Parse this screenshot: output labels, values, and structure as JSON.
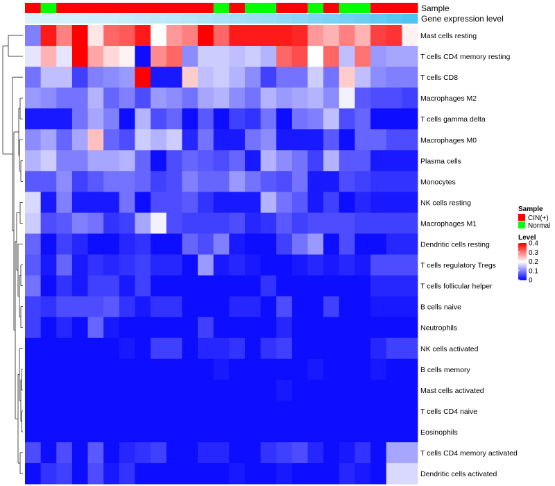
{
  "chart_data": {
    "type": "heatmap",
    "title": "",
    "annotation_labels": {
      "sample": "Sample",
      "expression": "Gene expression level"
    },
    "sample_groups": [
      "CIN(+)",
      "Normal",
      "CIN(+)",
      "CIN(+)",
      "CIN(+)",
      "CIN(+)",
      "CIN(+)",
      "CIN(+)",
      "CIN(+)",
      "CIN(+)",
      "CIN(+)",
      "CIN(+)",
      "Normal",
      "CIN(+)",
      "Normal",
      "Normal",
      "CIN(+)",
      "CIN(+)",
      "Normal",
      "CIN(+)",
      "Normal",
      "Normal",
      "CIN(+)",
      "CIN(+)",
      "CIN(+)"
    ],
    "gene_expression_level": [
      0.05,
      0.06,
      0.08,
      0.1,
      0.12,
      0.14,
      0.17,
      0.2,
      0.23,
      0.26,
      0.3,
      0.34,
      0.38,
      0.42,
      0.46,
      0.5,
      0.55,
      0.6,
      0.65,
      0.7,
      0.75,
      0.8,
      0.87,
      0.94,
      1.0
    ],
    "rows": [
      "Mast cells resting",
      "T cells CD4 memory resting",
      "T cells CD8",
      "Macrophages M2",
      "T cells gamma delta",
      "Macrophages M0",
      "Plasma cells",
      "Monocytes",
      "NK cells resting",
      "Macrophages M1",
      "Dendritic cells resting",
      "T cells regulatory  Tregs",
      "T cells follicular helper",
      "B cells naive",
      "Neutrophils",
      "NK cells activated",
      "B cells memory",
      "Mast cells activated",
      "T cells CD4 naive",
      "Eosinophils",
      "T cells CD4 memory activated",
      "Dendritic cells activated"
    ],
    "values": [
      [
        0.1,
        0.38,
        0.3,
        0.4,
        0.22,
        0.32,
        0.33,
        0.38,
        0.2,
        0.28,
        0.3,
        0.4,
        0.32,
        0.38,
        0.38,
        0.38,
        0.38,
        0.37,
        0.28,
        0.26,
        0.3,
        0.26,
        0.35,
        0.36,
        0.21
      ],
      [
        0.18,
        0.26,
        0.18,
        0.4,
        0.27,
        0.23,
        0.21,
        0.01,
        0.29,
        0.32,
        0.11,
        0.16,
        0.16,
        0.15,
        0.16,
        0.14,
        0.32,
        0.34,
        0.2,
        0.32,
        0.15,
        0.31,
        0.12,
        0.13,
        0.13
      ],
      [
        0.09,
        0.15,
        0.15,
        0.05,
        0.1,
        0.11,
        0.12,
        0.4,
        0.02,
        0.02,
        0.24,
        0.15,
        0.16,
        0.14,
        0.11,
        0.05,
        0.09,
        0.09,
        0.16,
        0.09,
        0.24,
        0.15,
        0.11,
        0.1,
        0.1
      ],
      [
        0.12,
        0.11,
        0.09,
        0.09,
        0.14,
        0.08,
        0.1,
        0.06,
        0.12,
        0.11,
        0.09,
        0.13,
        0.14,
        0.11,
        0.09,
        0.14,
        0.12,
        0.13,
        0.14,
        0.11,
        0.19,
        0.07,
        0.06,
        0.06,
        0.05
      ],
      [
        0.02,
        0.02,
        0.02,
        0.09,
        0.13,
        0.1,
        0.01,
        0.14,
        0.06,
        0.08,
        0.01,
        0.07,
        0.01,
        0.05,
        0.04,
        0.09,
        0.01,
        0.09,
        0.1,
        0.15,
        0.06,
        0.08,
        0.01,
        0.01,
        0.01
      ],
      [
        0.11,
        0.13,
        0.08,
        0.13,
        0.25,
        0.08,
        0.06,
        0.16,
        0.14,
        0.16,
        0.03,
        0.09,
        0.02,
        0.02,
        0.09,
        0.11,
        0.02,
        0.02,
        0.02,
        0.07,
        0.01,
        0.08,
        0.08,
        0.06,
        0.06
      ],
      [
        0.14,
        0.16,
        0.1,
        0.1,
        0.13,
        0.13,
        0.14,
        0.08,
        0.01,
        0.06,
        0.08,
        0.07,
        0.06,
        0.08,
        0.02,
        0.14,
        0.11,
        0.09,
        0.05,
        0.14,
        0.07,
        0.07,
        0.02,
        0.02,
        0.02
      ],
      [
        0.07,
        0.07,
        0.11,
        0.05,
        0.07,
        0.09,
        0.09,
        0.08,
        0.05,
        0.06,
        0.1,
        0.08,
        0.08,
        0.12,
        0.09,
        0.07,
        0.06,
        0.09,
        0.02,
        0.02,
        0.06,
        0.05,
        0.04,
        0.04,
        0.04
      ],
      [
        0.17,
        0.02,
        0.1,
        0.02,
        0.02,
        0.02,
        0.09,
        0.01,
        0.06,
        0.06,
        0.07,
        0.04,
        0.02,
        0.02,
        0.02,
        0.14,
        0.09,
        0.07,
        0.02,
        0.05,
        0.01,
        0.03,
        0.02,
        0.02,
        0.02
      ],
      [
        0.16,
        0.06,
        0.07,
        0.1,
        0.09,
        0.04,
        0.05,
        0.13,
        0.19,
        0.06,
        0.05,
        0.05,
        0.05,
        0.06,
        0.03,
        0.04,
        0.07,
        0.05,
        0.06,
        0.06,
        0.06,
        0.05,
        0.05,
        0.05,
        0.05
      ],
      [
        0.08,
        0.01,
        0.05,
        0.03,
        0.01,
        0.01,
        0.03,
        0.04,
        0.01,
        0.01,
        0.08,
        0.06,
        0.1,
        0.02,
        0.01,
        0.01,
        0.05,
        0.09,
        0.12,
        0.01,
        0.06,
        0.01,
        0.01,
        0.03,
        0.03
      ],
      [
        0.07,
        0.02,
        0.08,
        0.02,
        0.04,
        0.03,
        0.04,
        0.05,
        0.03,
        0.03,
        0.01,
        0.12,
        0.02,
        0.03,
        0.02,
        0.01,
        0.01,
        0.02,
        0.03,
        0.02,
        0.03,
        0.02,
        0.06,
        0.06,
        0.06
      ],
      [
        0.09,
        0.01,
        0.04,
        0.02,
        0.05,
        0.05,
        0.02,
        0.05,
        0.01,
        0.01,
        0.01,
        0.01,
        0.01,
        0.01,
        0.01,
        0.04,
        0.01,
        0.01,
        0.01,
        0.01,
        0.01,
        0.01,
        0.03,
        0.03,
        0.03
      ],
      [
        0.05,
        0.04,
        0.06,
        0.06,
        0.06,
        0.07,
        0.04,
        0.02,
        0.04,
        0.04,
        0.01,
        0.01,
        0.01,
        0.03,
        0.03,
        0.01,
        0.06,
        0.01,
        0.01,
        0.05,
        0.01,
        0.01,
        0.02,
        0.02,
        0.02
      ],
      [
        0.05,
        0.01,
        0.03,
        0.01,
        0.08,
        0.02,
        0.01,
        0.01,
        0.01,
        0.01,
        0.01,
        0.05,
        0.01,
        0.01,
        0.01,
        0.01,
        0.03,
        0.01,
        0.01,
        0.01,
        0.01,
        0.01,
        0.01,
        0.01,
        0.01
      ],
      [
        0.01,
        0.01,
        0.01,
        0.01,
        0.01,
        0.01,
        0.02,
        0.01,
        0.05,
        0.05,
        0.01,
        0.03,
        0.03,
        0.04,
        0.01,
        0.04,
        0.05,
        0.01,
        0.01,
        0.01,
        0.01,
        0.01,
        0.03,
        0.05,
        0.05
      ],
      [
        0.01,
        0.01,
        0.01,
        0.01,
        0.01,
        0.01,
        0.01,
        0.01,
        0.01,
        0.01,
        0.01,
        0.01,
        0.02,
        0.01,
        0.01,
        0.01,
        0.01,
        0.01,
        0.02,
        0.01,
        0.01,
        0.01,
        0.02,
        0.01,
        0.01
      ],
      [
        0.01,
        0.01,
        0.01,
        0.01,
        0.01,
        0.01,
        0.01,
        0.01,
        0.01,
        0.01,
        0.01,
        0.01,
        0.01,
        0.01,
        0.01,
        0.01,
        0.02,
        0.01,
        0.01,
        0.01,
        0.01,
        0.01,
        0.01,
        0.01,
        0.01
      ],
      [
        0.01,
        0.01,
        0.01,
        0.01,
        0.01,
        0.01,
        0.01,
        0.01,
        0.01,
        0.01,
        0.01,
        0.01,
        0.01,
        0.01,
        0.01,
        0.01,
        0.01,
        0.01,
        0.01,
        0.01,
        0.01,
        0.01,
        0.01,
        0.01,
        0.01
      ],
      [
        0.01,
        0.01,
        0.01,
        0.01,
        0.01,
        0.01,
        0.01,
        0.01,
        0.01,
        0.01,
        0.01,
        0.01,
        0.01,
        0.01,
        0.01,
        0.01,
        0.01,
        0.01,
        0.01,
        0.01,
        0.01,
        0.01,
        0.01,
        0.01,
        0.01
      ],
      [
        0.06,
        0.01,
        0.06,
        0.01,
        0.07,
        0.01,
        0.03,
        0.04,
        0.05,
        0.01,
        0.01,
        0.03,
        0.03,
        0.01,
        0.01,
        0.04,
        0.05,
        0.06,
        0.03,
        0.01,
        0.02,
        0.04,
        0.01,
        0.13,
        0.13
      ],
      [
        0.01,
        0.04,
        0.05,
        0.01,
        0.06,
        0.02,
        0.04,
        0.01,
        0.01,
        0.01,
        0.01,
        0.01,
        0.01,
        0.02,
        0.01,
        0.01,
        0.02,
        0.01,
        0.01,
        0.01,
        0.03,
        0.02,
        0.01,
        0.17,
        0.17
      ]
    ],
    "legend": {
      "sample_title": "Sample",
      "groups": [
        {
          "label": "CIN(+)",
          "color": "#ff0000"
        },
        {
          "label": "Normal",
          "color": "#00ff00"
        }
      ],
      "level_title": "Level",
      "level_ticks": [
        0.4,
        0.3,
        0.2,
        0.1,
        0
      ],
      "level_tick_labels": [
        "0.4",
        "0.3",
        "0.2",
        "0.1",
        "0"
      ]
    },
    "colors": {
      "low": "#0000ff",
      "mid": "#ffffff",
      "high": "#ff0000",
      "mid_value": 0.2,
      "max_value": 0.4,
      "expr_low": "#e0f4fc",
      "expr_high": "#4fc3f0"
    },
    "row_tree": "hierarchical clustering dendrogram"
  }
}
